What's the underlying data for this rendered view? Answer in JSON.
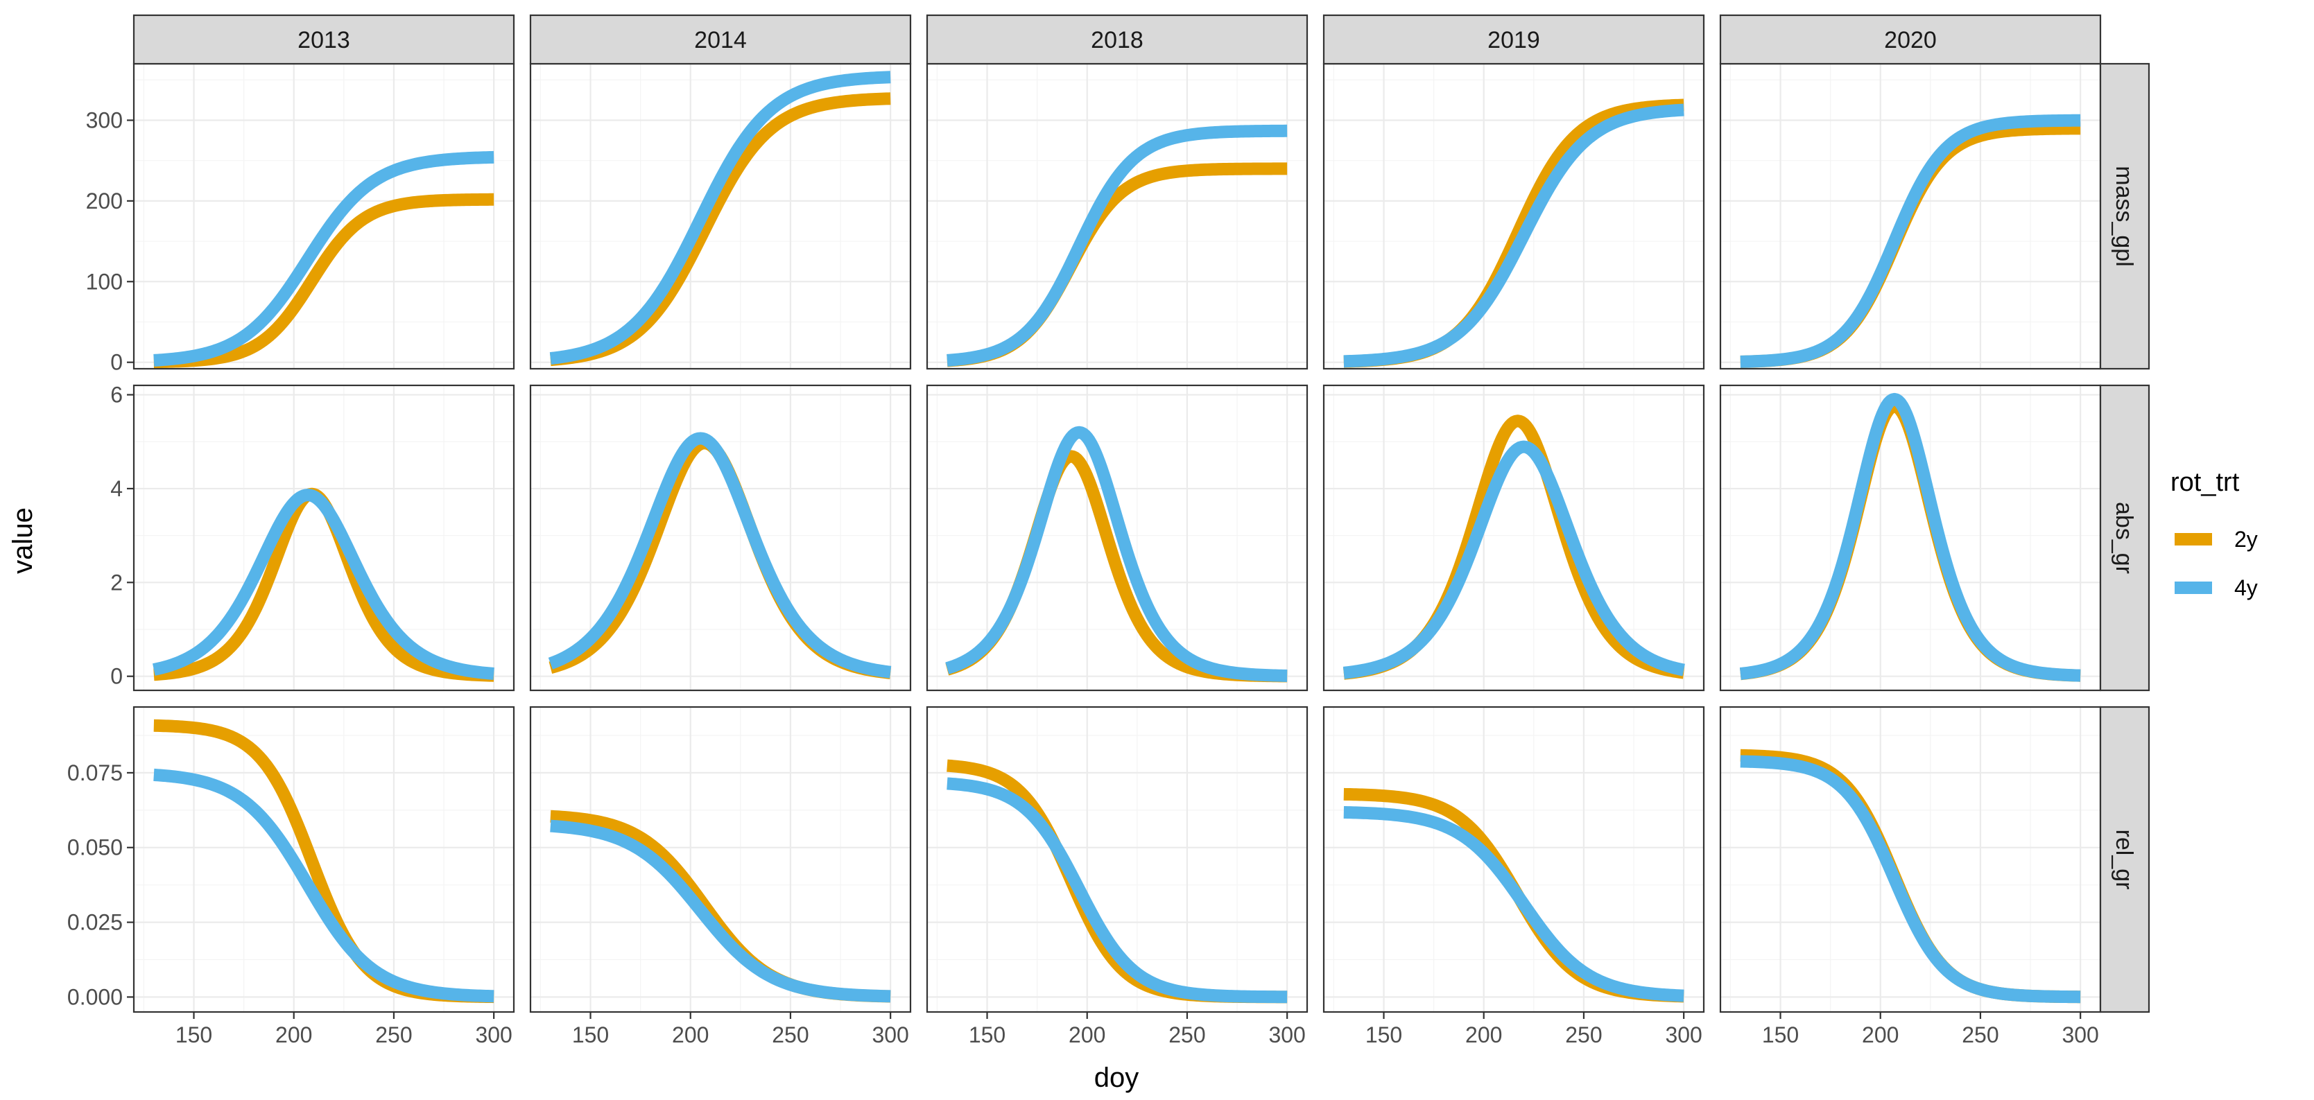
{
  "chart_data": {
    "type": "line",
    "layout": "facet_grid",
    "xlabel": "doy",
    "ylabel": "value",
    "legend": {
      "title": "rot_trt",
      "placement": "right",
      "entries": [
        {
          "name": "2y",
          "color": "#E69F00"
        },
        {
          "name": "4y",
          "color": "#56B4E9"
        }
      ]
    },
    "col_facets": [
      "2013",
      "2014",
      "2018",
      "2019",
      "2020"
    ],
    "row_facets": [
      {
        "name": "mass_gpl",
        "ylim": [
          -8,
          370
        ],
        "ticks": [
          0,
          100,
          200,
          300
        ],
        "tick_labels": [
          "0",
          "100",
          "200",
          "300"
        ]
      },
      {
        "name": "abs_gr",
        "ylim": [
          -0.3,
          6.2
        ],
        "ticks": [
          0,
          2,
          4,
          6
        ],
        "tick_labels": [
          "0",
          "2",
          "4",
          "6"
        ]
      },
      {
        "name": "rel_gr",
        "ylim": [
          -0.005,
          0.097
        ],
        "ticks": [
          0,
          0.025,
          0.05,
          0.075
        ],
        "tick_labels": [
          "0.000",
          "0.025",
          "0.050",
          "0.075"
        ]
      }
    ],
    "xlim": [
      120,
      310
    ],
    "x_ticks": [
      150,
      200,
      250,
      300
    ],
    "x_tick_labels": [
      "150",
      "200",
      "250",
      "300"
    ],
    "x_range": [
      130,
      300
    ],
    "series_params": {
      "2013": {
        "2y": {
          "A": 202,
          "mu": 209,
          "s": 13.0,
          "r0": 0.091
        },
        "4y": {
          "A": 255,
          "mu": 207,
          "s": 16.5,
          "r0": 0.075
        }
      },
      "2014": {
        "2y": {
          "A": 328,
          "mu": 207,
          "s": 16.5,
          "r0": 0.061
        },
        "4y": {
          "A": 355,
          "mu": 205,
          "s": 17.5,
          "r0": 0.058
        }
      },
      "2018": {
        "2y": {
          "A": 240,
          "mu": 192,
          "s": 12.8,
          "r0": 0.078
        },
        "4y": {
          "A": 287,
          "mu": 196,
          "s": 13.8,
          "r0": 0.072
        }
      },
      "2019": {
        "2y": {
          "A": 320,
          "mu": 217,
          "s": 14.7,
          "r0": 0.068
        },
        "4y": {
          "A": 315,
          "mu": 220,
          "s": 16.1,
          "r0": 0.062
        }
      },
      "2020": {
        "2y": {
          "A": 290,
          "mu": 207,
          "s": 12.6,
          "r0": 0.081
        },
        "4y": {
          "A": 300,
          "mu": 207,
          "s": 12.7,
          "r0": 0.079
        }
      }
    }
  }
}
